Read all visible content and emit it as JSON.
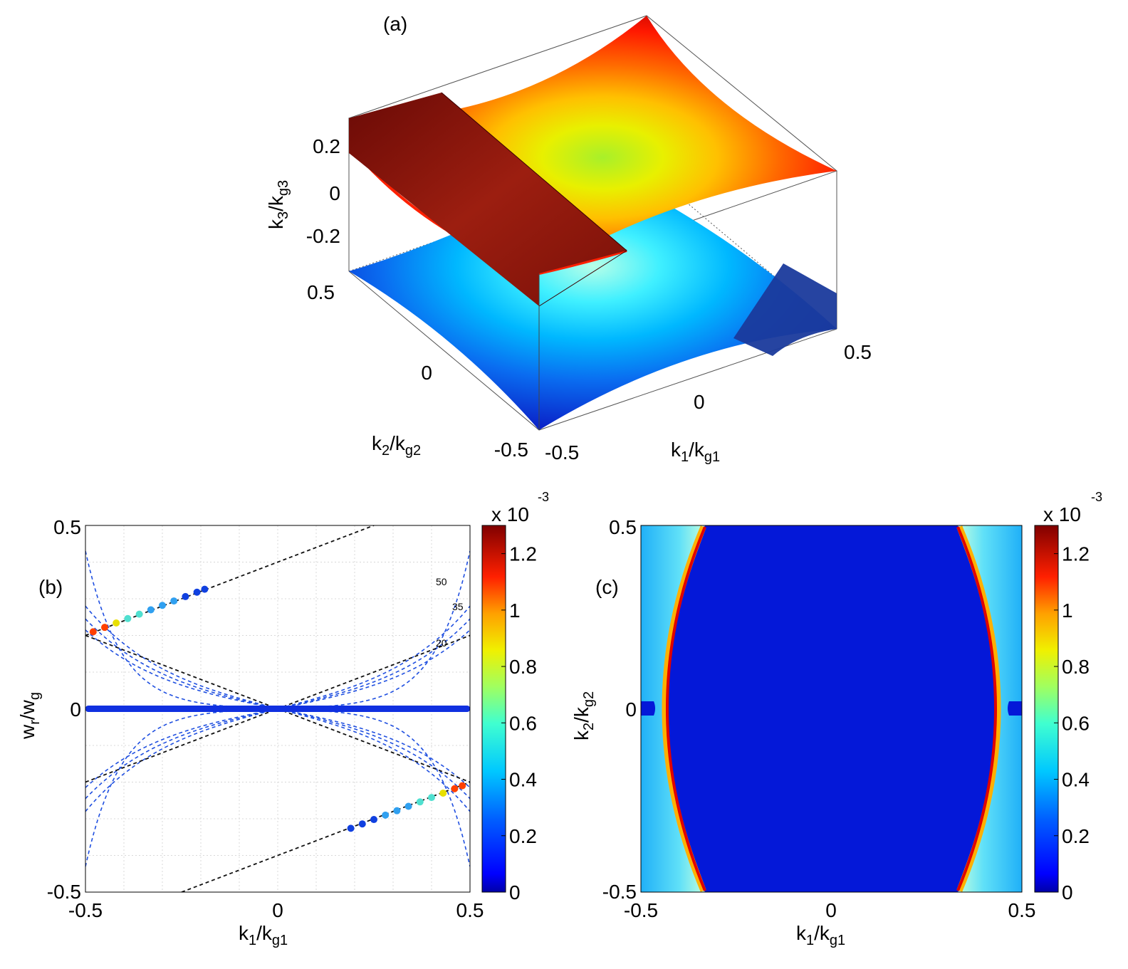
{
  "chart_data": [
    {
      "panel": "(a)",
      "type": "surface",
      "xlabel": {
        "main": "k",
        "sub1": "1",
        "mid": "/k",
        "sub2": "g1"
      },
      "ylabel": {
        "main": "k",
        "sub1": "2",
        "mid": "/k",
        "sub2": "g2"
      },
      "zlabel": {
        "main": "k",
        "sub1": "3",
        "mid": "/k",
        "sub2": "g3"
      },
      "xlim": [
        -0.5,
        0.5
      ],
      "ylim": [
        -0.5,
        0.5
      ],
      "zlim": [
        -0.3,
        0.3
      ],
      "x_ticks": [
        "-0.5",
        "0",
        "0.5"
      ],
      "y_ticks": [
        "-0.5",
        "0",
        "0.5"
      ],
      "z_ticks": [
        "0.2",
        "0",
        "-0.2"
      ],
      "surfaces": [
        {
          "name": "upper",
          "colormap": "jet-warm"
        },
        {
          "name": "lower",
          "colormap": "jet-cool"
        },
        {
          "name": "plane",
          "color": "#8b1a10"
        }
      ]
    },
    {
      "panel": "(b)",
      "type": "line",
      "xlabel": {
        "main": "k",
        "sub1": "1",
        "mid": "/k",
        "sub2": "g1"
      },
      "ylabel": {
        "main": "w",
        "sub1": "r",
        "mid": "/w",
        "sub2": "g"
      },
      "xlim": [
        -0.5,
        0.5
      ],
      "ylim": [
        -0.5,
        0.5
      ],
      "x_ticks": [
        "-0.5",
        "0",
        "0.5"
      ],
      "y_ticks": [
        "0.5",
        "0",
        "-0.5"
      ],
      "grid": true,
      "contour_labels": [
        "50",
        "35",
        "20"
      ],
      "black_lines": [
        {
          "x": [
            -0.5,
            0.5
          ],
          "y": [
            0.2,
            -0.2
          ]
        },
        {
          "x": [
            -0.5,
            0.5
          ],
          "y": [
            -0.2,
            0.2
          ]
        },
        {
          "x": [
            -0.5,
            0.25
          ],
          "y": [
            0.2,
            0.5
          ]
        },
        {
          "x": [
            -0.25,
            0.5
          ],
          "y": [
            -0.5,
            -0.2
          ]
        }
      ],
      "blue_curves_amplitude": [
        0.43,
        0.28,
        0.245,
        0.215
      ],
      "points_series": [
        {
          "x": [
            -0.48,
            -0.45,
            -0.42,
            -0.39,
            -0.36,
            -0.33,
            -0.3,
            -0.27,
            -0.24,
            -0.21,
            -0.19
          ],
          "y": [
            0.21,
            0.222,
            0.234,
            0.246,
            0.258,
            0.27,
            0.282,
            0.294,
            0.306,
            0.318,
            0.326
          ]
        },
        {
          "x": [
            0.19,
            0.22,
            0.25,
            0.28,
            0.31,
            0.34,
            0.37,
            0.4,
            0.43,
            0.46,
            0.48
          ],
          "y": [
            -0.326,
            -0.314,
            -0.302,
            -0.29,
            -0.278,
            -0.266,
            -0.254,
            -0.242,
            -0.23,
            -0.218,
            -0.21
          ]
        }
      ],
      "colorbar": {
        "ticks": [
          "1.2",
          "1",
          "0.8",
          "0.6",
          "0.4",
          "0.2",
          "0"
        ],
        "exp_base": "x 10",
        "exp": "-3",
        "min": 0,
        "max": 0.0013
      }
    },
    {
      "panel": "(c)",
      "type": "heatmap",
      "xlabel": {
        "main": "k",
        "sub1": "1",
        "mid": "/k",
        "sub2": "g1"
      },
      "ylabel": {
        "main": "k",
        "sub1": "2",
        "mid": "/k",
        "sub2": "g2"
      },
      "xlim": [
        -0.5,
        0.5
      ],
      "ylim": [
        -0.5,
        0.5
      ],
      "x_ticks": [
        "-0.5",
        "0",
        "0.5"
      ],
      "y_ticks": [
        "0.5",
        "0",
        "-0.5"
      ],
      "colorbar": {
        "ticks": [
          "1.2",
          "1",
          "0.8",
          "0.6",
          "0.4",
          "0.2",
          "0"
        ],
        "exp_base": "x 10",
        "exp": "-3",
        "min": 0,
        "max": 0.0013
      }
    }
  ],
  "panel_labels": {
    "a": "(a)",
    "b": "(b)",
    "c": "(c)"
  }
}
